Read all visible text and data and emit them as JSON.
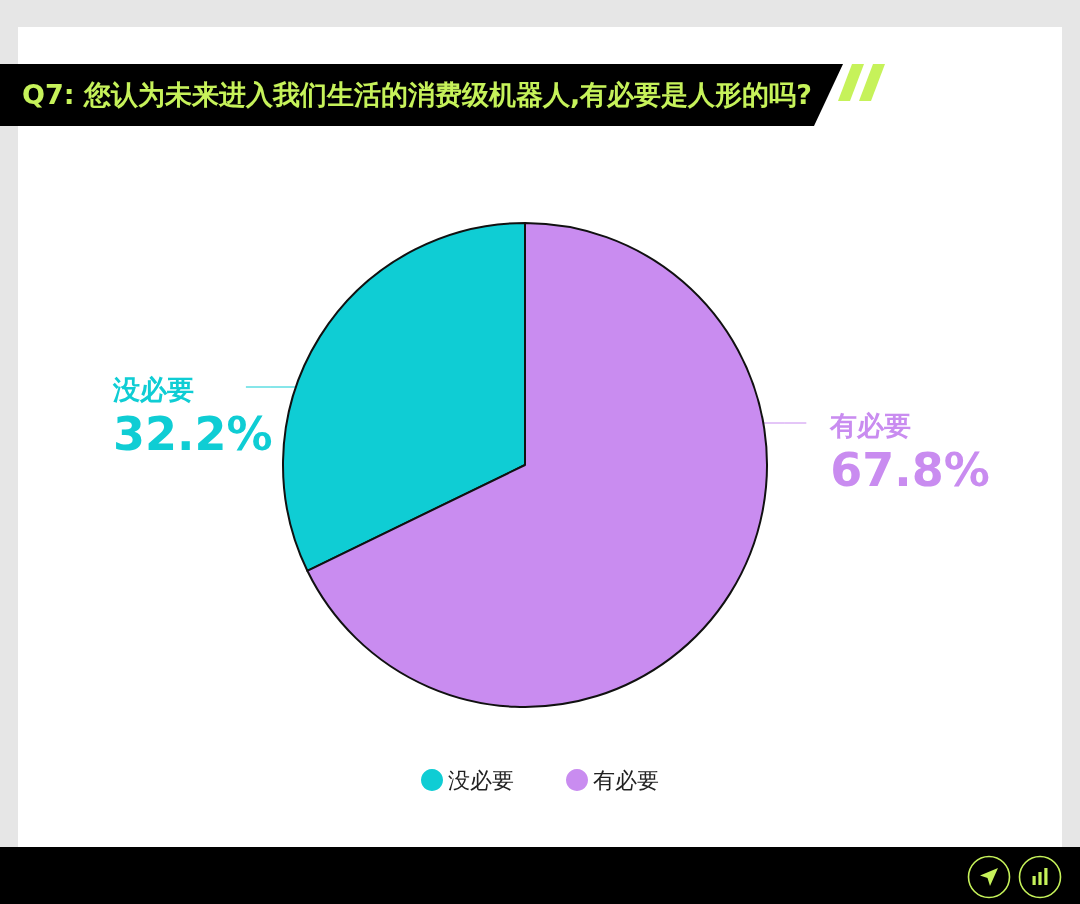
{
  "chart_data": {
    "type": "pie",
    "title": "Q7: 您认为未来进入我们生活的消费级机器人,有必要是人形的吗?",
    "categories": [
      "没必要",
      "有必要"
    ],
    "values": [
      32.2,
      67.8
    ],
    "colors": [
      "#0fcdd4",
      "#c98cf0"
    ],
    "value_labels": [
      "32.2%",
      "67.8%"
    ],
    "legend": "bottom"
  }
}
